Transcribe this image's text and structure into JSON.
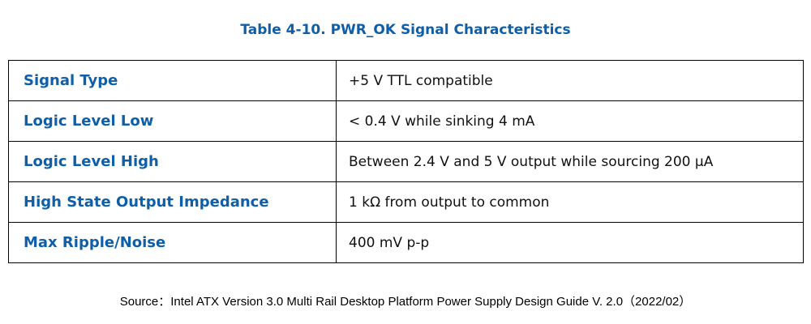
{
  "title": "Table 4-10. PWR_OK Signal Characteristics",
  "rows": [
    {
      "label": "Signal Type",
      "value": "+5 V TTL compatible"
    },
    {
      "label": "Logic Level Low",
      "value": "< 0.4 V while sinking 4 mA"
    },
    {
      "label": "Logic Level High",
      "value": "Between 2.4 V and 5 V output while sourcing 200 µA"
    },
    {
      "label": "High State Output Impedance",
      "value": "1 kΩ from output to common"
    },
    {
      "label": "Max Ripple/Noise",
      "value": "400 mV p-p"
    }
  ],
  "source": "Source：Intel ATX Version 3.0 Multi Rail Desktop Platform Power Supply Design Guide V. 2.0（2022/02）",
  "colors": {
    "accent": "#0f5ea8",
    "text": "#111111",
    "border": "#000000"
  }
}
